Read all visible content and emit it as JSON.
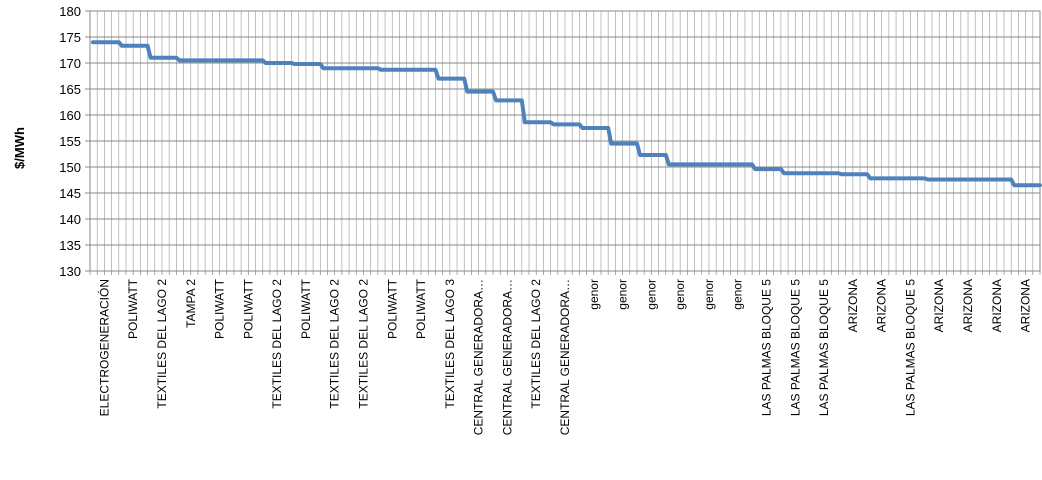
{
  "chart_data": {
    "type": "line",
    "title": "",
    "xlabel": "",
    "ylabel": "$/MWh",
    "ylim": [
      130,
      180
    ],
    "yticks": [
      130,
      135,
      140,
      145,
      150,
      155,
      160,
      165,
      170,
      175,
      180
    ],
    "grid": {
      "horizontal": true,
      "vertical": true
    },
    "legend": "none",
    "line_color": "#4f81bd",
    "categories": [
      "ELECTROGENERACIÓN",
      "POLIWATT",
      "TEXTILES DEL LAGO 2",
      "TAMPA 2",
      "POLIWATT",
      "POLIWATT",
      "TEXTILES DEL LAGO 2",
      "POLIWATT",
      "TEXTILES DEL LAGO 2",
      "TEXTILES DEL LAGO 2",
      "POLIWATT",
      "POLIWATT",
      "TEXTILES DEL LAGO 3",
      "CENTRAL GENERADORA…",
      "CENTRAL GENERADORA…",
      "TEXTILES DEL LAGO 2",
      "CENTRAL GENERADORA…",
      "genor",
      "genor",
      "genor",
      "genor",
      "genor",
      "genor",
      "LAS PALMAS BLOQUE 5",
      "LAS PALMAS BLOQUE 5",
      "LAS PALMAS BLOQUE 5",
      "ARIZONA",
      "ARIZONA",
      "LAS PALMAS BLOQUE 5",
      "ARIZONA",
      "ARIZONA",
      "ARIZONA",
      "ARIZONA"
    ],
    "values": [
      174,
      173.3,
      171,
      170.5,
      170.5,
      170.5,
      170,
      169.8,
      169,
      169,
      168.7,
      168.7,
      167,
      164.5,
      162.8,
      158.6,
      158.2,
      157.5,
      154.5,
      152.3,
      150.5,
      150.5,
      150.5,
      149.6,
      148.8,
      148.8,
      148.6,
      147.8,
      147.8,
      147.6,
      147.6,
      147.6,
      146.5
    ]
  }
}
